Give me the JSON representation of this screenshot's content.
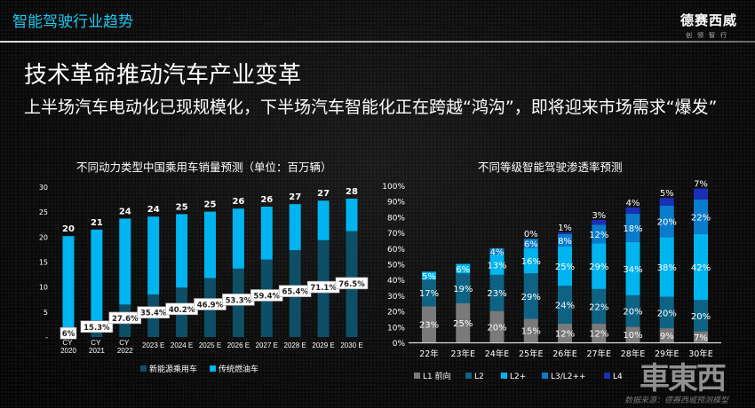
{
  "header": {
    "title": "智能驾驶行业趋势",
    "logo_main": "德赛西威",
    "logo_sub": "创领智行"
  },
  "page_title": "技术革命推动汽车产业变革",
  "subtitle": "上半场汽车电动化已现规模化，下半场汽车智能化正在跨越“鸿沟”，即将迎来市场需求“爆发”",
  "colors": {
    "accent": "#1fc8f0",
    "nev": "#0d4f66",
    "ice": "#00b4f0",
    "l1": "#7a7a7a",
    "l2": "#0e6384",
    "l2plus": "#00b4f0",
    "l3": "#0a7ccc",
    "l4": "#1a2fb8"
  },
  "chart_data": [
    {
      "type": "bar",
      "stacked": true,
      "title": "不同动力类型中国乘用车销量预测（单位：百万辆）",
      "categories": [
        "CY 2020",
        "CY 2021",
        "CY 2022",
        "2023 E",
        "2024 E",
        "2025 E",
        "2026 E",
        "2027 E",
        "2028 E",
        "2029 E",
        "2030 E"
      ],
      "series": [
        {
          "name": "新能源乘用车",
          "values": [
            1.2,
            3.3,
            6.5,
            8.5,
            9.9,
            11.8,
            13.7,
            15.5,
            17.4,
            19.4,
            21.2
          ]
        },
        {
          "name": "传统燃油车",
          "values": [
            19.0,
            18.2,
            17.2,
            15.6,
            14.7,
            13.3,
            12.0,
            10.6,
            9.2,
            7.9,
            6.5
          ]
        }
      ],
      "total_labels": [
        "20",
        "21",
        "24",
        "24",
        "25",
        "25",
        "26",
        "26",
        "27",
        "27",
        "28"
      ],
      "share_labels": [
        "6%",
        "15.3%",
        "27.6%",
        "35.4%",
        "40.2%",
        "46.9%",
        "53.3%",
        "59.4%",
        "65.4%",
        "71.1%",
        "76.5%"
      ],
      "share_values": [
        6,
        15.3,
        27.6,
        35.4,
        40.2,
        46.9,
        53.3,
        59.4,
        65.4,
        71.1,
        76.5
      ],
      "yticks": [
        "-",
        "5",
        "10",
        "15",
        "20",
        "25",
        "30"
      ],
      "ylim": [
        0,
        30
      ],
      "legend": "bottom"
    },
    {
      "type": "bar",
      "stacked": true,
      "title": "不同等级智能驾驶渗透率预测",
      "categories": [
        "22年",
        "23年E",
        "24年E",
        "25年E",
        "26年E",
        "27年E",
        "28年E",
        "29年E",
        "30年E"
      ],
      "series": [
        {
          "name": "L1 前向",
          "values": [
            23,
            25,
            20,
            15,
            12,
            12,
            10,
            9,
            7
          ]
        },
        {
          "name": "L2",
          "values": [
            17,
            19,
            23,
            29,
            24,
            22,
            20,
            20,
            20
          ]
        },
        {
          "name": "L2+",
          "values": [
            5,
            6,
            13,
            16,
            25,
            29,
            34,
            38,
            42
          ]
        },
        {
          "name": "L3/L2++",
          "values": [
            null,
            null,
            4,
            6,
            8,
            12,
            18,
            20,
            22
          ]
        },
        {
          "name": "L4",
          "values": [
            null,
            null,
            null,
            0,
            1,
            3,
            4,
            5,
            7
          ]
        }
      ],
      "yticks": [
        "0%",
        "10%",
        "20%",
        "30%",
        "40%",
        "50%",
        "60%",
        "70%",
        "80%",
        "90%",
        "100%"
      ],
      "ylim": [
        0,
        100
      ],
      "legend": "bottom"
    }
  ],
  "watermark": "車東西",
  "source": "数据来源：德赛西威预测模型"
}
